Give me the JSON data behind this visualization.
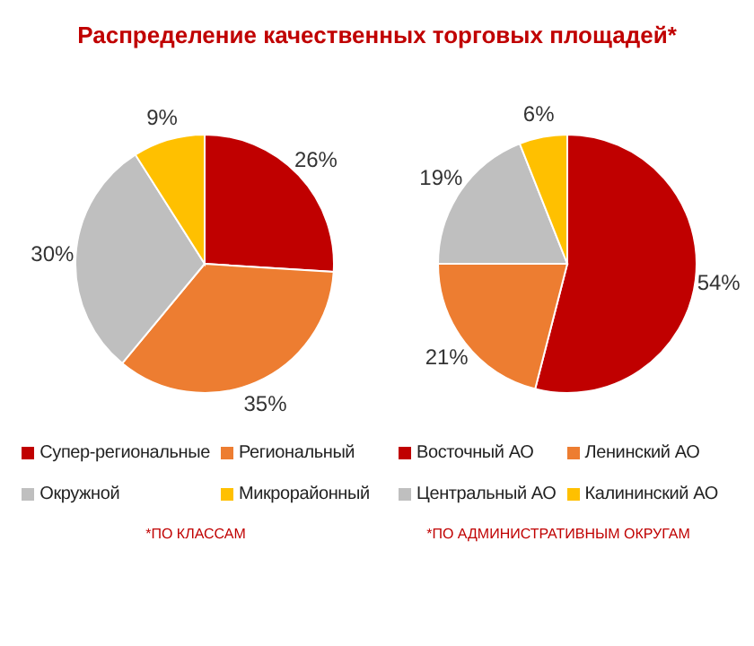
{
  "chart_data": [
    {
      "type": "pie",
      "title": "Распределение качественных торговых площадей*",
      "categories": [
        "Супер-региональные",
        "Региональный",
        "Окружной",
        "Микрорайонный"
      ],
      "values": [
        26,
        35,
        30,
        9
      ],
      "value_labels": [
        "26%",
        "35%",
        "30%",
        "9%"
      ],
      "colors": [
        "#c00000",
        "#ed7d31",
        "#bfbfbf",
        "#ffc000"
      ],
      "legend": "bottom",
      "annotations": [
        "*ПО КЛАССАМ"
      ]
    },
    {
      "type": "pie",
      "categories": [
        "Восточный АО",
        "Ленинский АО",
        "Центральный АО",
        "Калининский АО"
      ],
      "values": [
        54,
        21,
        19,
        6
      ],
      "value_labels": [
        "54%",
        "21%",
        "19%",
        "6%"
      ],
      "colors": [
        "#c00000",
        "#ed7d31",
        "#bfbfbf",
        "#ffc000"
      ],
      "legend": "bottom",
      "annotations": [
        "*ПО АДМИНИСТРАТИВНЫМ ОКРУГАМ"
      ]
    }
  ]
}
